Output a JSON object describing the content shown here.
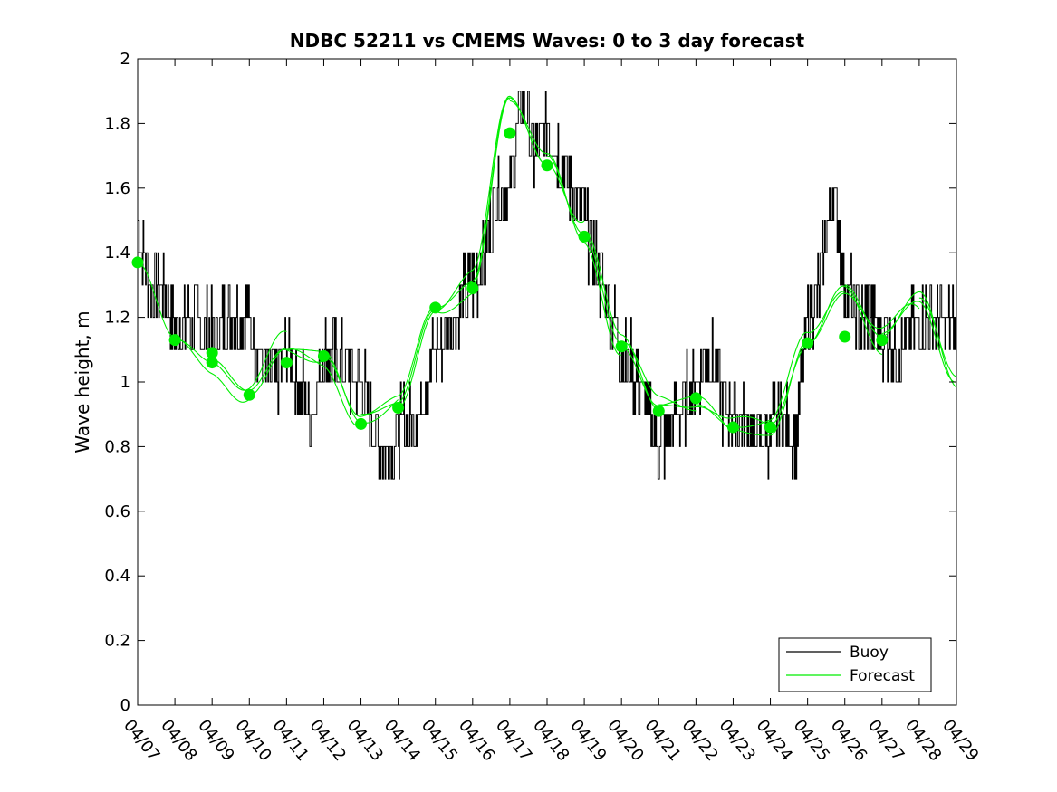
{
  "chart_data": {
    "type": "line",
    "title": "NDBC 52211 vs CMEMS Waves: 0 to 3 day forecast",
    "xlabel": "",
    "ylabel": "Wave height, m",
    "x_tick_labels": [
      "04/07",
      "04/08",
      "04/09",
      "04/10",
      "04/11",
      "04/12",
      "04/13",
      "04/14",
      "04/15",
      "04/16",
      "04/17",
      "04/18",
      "04/19",
      "04/20",
      "04/21",
      "04/22",
      "04/23",
      "04/24",
      "04/25",
      "04/26",
      "04/27",
      "04/28",
      "04/29"
    ],
    "xlim_days": [
      0,
      22
    ],
    "y_ticks": [
      0,
      0.2,
      0.4,
      0.6,
      0.8,
      1,
      1.2,
      1.4,
      1.6,
      1.8,
      2
    ],
    "y_tick_labels": [
      "0",
      "0.2",
      "0.4",
      "0.6",
      "0.8",
      "1",
      "1.2",
      "1.4",
      "1.6",
      "1.8",
      "2"
    ],
    "ylim": [
      0,
      2
    ],
    "grid": false,
    "legend_position": "bottom-right",
    "colors": {
      "buoy": "#000000",
      "forecast": "#00ee00",
      "markers": "#00ee00"
    },
    "series": [
      {
        "name": "Buoy",
        "x": [
          "04/07",
          "04/07",
          "04/07",
          "04/08",
          "04/08",
          "04/09",
          "04/09",
          "04/10",
          "04/10",
          "04/10",
          "04/11",
          "04/11",
          "04/11",
          "04/12",
          "04/12",
          "04/13",
          "04/13",
          "04/13",
          "04/13",
          "04/14",
          "04/14",
          "04/15",
          "04/15",
          "04/16",
          "04/16",
          "04/16",
          "04/17",
          "04/17",
          "04/17",
          "04/18",
          "04/18",
          "04/19",
          "04/19",
          "04/20",
          "04/20",
          "04/21",
          "04/21",
          "04/22",
          "04/22",
          "04/22",
          "04/23",
          "04/23",
          "04/24",
          "04/24",
          "04/24",
          "04/25",
          "04/25",
          "04/25",
          "04/26",
          "04/26",
          "04/26",
          "04/27",
          "04/27",
          "04/28",
          "04/28",
          "04/29"
        ],
        "y": [
          1.5,
          1.3,
          1.3,
          1.15,
          1.2,
          1.15,
          1.2,
          1.2,
          1.05,
          1.0,
          1.1,
          1.0,
          0.9,
          1.1,
          1.05,
          1.0,
          0.9,
          0.8,
          0.8,
          0.85,
          0.9,
          1.1,
          1.2,
          1.3,
          1.4,
          1.6,
          1.6,
          1.9,
          1.7,
          1.8,
          1.65,
          1.5,
          1.3,
          1.1,
          1.0,
          0.8,
          0.9,
          1.0,
          1.1,
          0.95,
          0.9,
          0.85,
          0.85,
          0.9,
          0.8,
          1.2,
          1.3,
          1.6,
          1.3,
          1.2,
          1.2,
          1.15,
          1.1,
          1.2,
          1.2,
          1.15
        ]
      },
      {
        "name": "Forecast",
        "x": [
          "04/07",
          "04/08",
          "04/09",
          "04/10",
          "04/11",
          "04/12",
          "04/13",
          "04/14",
          "04/15",
          "04/16",
          "04/17",
          "04/18",
          "04/19",
          "04/20",
          "04/21",
          "04/22",
          "04/23",
          "04/24",
          "04/25",
          "04/26",
          "04/27",
          "04/28",
          "04/29"
        ],
        "y": [
          1.37,
          1.13,
          1.07,
          0.96,
          1.1,
          1.08,
          0.9,
          0.92,
          1.23,
          1.3,
          1.87,
          1.7,
          1.45,
          1.11,
          0.93,
          0.93,
          0.86,
          0.87,
          1.12,
          1.3,
          1.15,
          1.26,
          1.01
        ]
      }
    ],
    "marker_points": {
      "x": [
        "04/07",
        "04/08",
        "04/09",
        "04/09",
        "04/10",
        "04/11",
        "04/12",
        "04/13",
        "04/14",
        "04/15",
        "04/16",
        "04/17",
        "04/18",
        "04/19",
        "04/20",
        "04/21",
        "04/22",
        "04/23",
        "04/24",
        "04/25",
        "04/26",
        "04/27"
      ],
      "y": [
        1.37,
        1.13,
        1.09,
        1.06,
        0.96,
        1.06,
        1.08,
        0.87,
        0.92,
        1.23,
        1.29,
        1.77,
        1.67,
        1.45,
        1.11,
        0.91,
        0.95,
        0.86,
        0.86,
        1.12,
        1.14,
        1.13
      ]
    },
    "legend": [
      {
        "label": "Buoy",
        "color": "#000000"
      },
      {
        "label": "Forecast",
        "color": "#00ee00"
      }
    ]
  }
}
